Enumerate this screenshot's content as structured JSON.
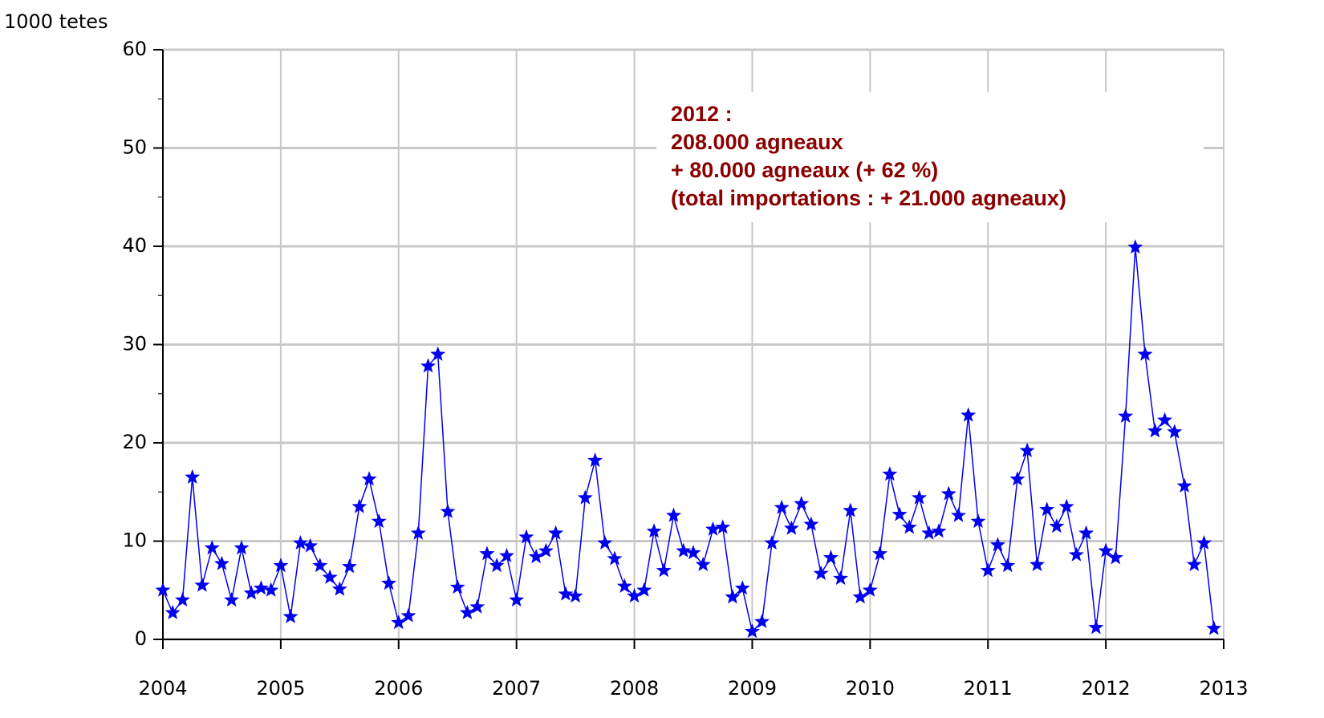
{
  "chart_data": {
    "type": "line",
    "y_label": "1000 tetes",
    "annotation": [
      "2012 :",
      "208.000 agneaux",
      "+ 80.000 agneaux (+ 62 %)",
      "(total importations : + 21.000 agneaux)"
    ],
    "xlim": [
      2004,
      2013
    ],
    "xticks": [
      2004,
      2005,
      2006,
      2007,
      2008,
      2009,
      2010,
      2011,
      2012,
      2013
    ],
    "ylim": [
      0,
      60
    ],
    "yticks": [
      0,
      10,
      20,
      30,
      40,
      50,
      60
    ],
    "grid": true,
    "series": [
      {
        "color": "#0000ee",
        "x": [
          2004,
          2004.083,
          2004.167,
          2004.25,
          2004.333,
          2004.417,
          2004.5,
          2004.583,
          2004.667,
          2004.75,
          2004.833,
          2004.917,
          2005,
          2005.083,
          2005.167,
          2005.25,
          2005.333,
          2005.417,
          2005.5,
          2005.583,
          2005.667,
          2005.75,
          2005.833,
          2005.917,
          2006,
          2006.083,
          2006.167,
          2006.25,
          2006.333,
          2006.417,
          2006.5,
          2006.583,
          2006.667,
          2006.75,
          2006.833,
          2006.917,
          2007,
          2007.083,
          2007.167,
          2007.25,
          2007.333,
          2007.417,
          2007.5,
          2007.583,
          2007.667,
          2007.75,
          2007.833,
          2007.917,
          2008,
          2008.083,
          2008.167,
          2008.25,
          2008.333,
          2008.417,
          2008.5,
          2008.583,
          2008.667,
          2008.75,
          2008.833,
          2008.917,
          2009,
          2009.083,
          2009.167,
          2009.25,
          2009.333,
          2009.417,
          2009.5,
          2009.583,
          2009.667,
          2009.75,
          2009.833,
          2009.917,
          2010,
          2010.083,
          2010.167,
          2010.25,
          2010.333,
          2010.417,
          2010.5,
          2010.583,
          2010.667,
          2010.75,
          2010.833,
          2010.917,
          2011,
          2011.083,
          2011.167,
          2011.25,
          2011.333,
          2011.417,
          2011.5,
          2011.583,
          2011.667,
          2011.75,
          2011.833,
          2011.917,
          2012,
          2012.083,
          2012.167,
          2012.25,
          2012.333,
          2012.417,
          2012.5,
          2012.583,
          2012.667,
          2012.75,
          2012.833,
          2012.917
        ],
        "values": [
          5.0,
          2.7,
          4.0,
          16.5,
          5.5,
          9.3,
          7.7,
          4.0,
          9.3,
          4.7,
          5.2,
          5.0,
          7.5,
          2.3,
          9.8,
          9.5,
          7.5,
          6.3,
          5.1,
          7.4,
          13.5,
          16.3,
          12.0,
          5.7,
          1.7,
          2.4,
          10.8,
          27.8,
          29.0,
          13.0,
          5.3,
          2.7,
          3.3,
          8.7,
          7.5,
          8.5,
          4.0,
          10.4,
          8.4,
          9.0,
          10.8,
          4.6,
          4.4,
          14.4,
          18.2,
          9.8,
          8.2,
          5.4,
          4.4,
          5.0,
          11.0,
          7.0,
          12.6,
          9.0,
          8.8,
          7.6,
          11.2,
          11.4,
          4.3,
          5.2,
          0.8,
          1.8,
          9.8,
          13.4,
          11.3,
          13.8,
          11.7,
          6.7,
          8.3,
          6.2,
          13.1,
          4.3,
          5.0,
          8.7,
          16.8,
          12.7,
          11.4,
          14.4,
          10.8,
          11.0,
          14.8,
          12.6,
          22.8,
          12.0,
          7.0,
          9.6,
          7.5,
          16.3,
          19.2,
          7.6,
          13.2,
          11.5,
          13.5,
          8.6,
          10.8,
          1.2,
          9.0,
          8.3,
          22.7,
          39.9,
          29.0,
          21.2,
          22.3,
          21.1,
          15.6,
          7.6,
          9.8,
          1.1
        ]
      }
    ]
  }
}
